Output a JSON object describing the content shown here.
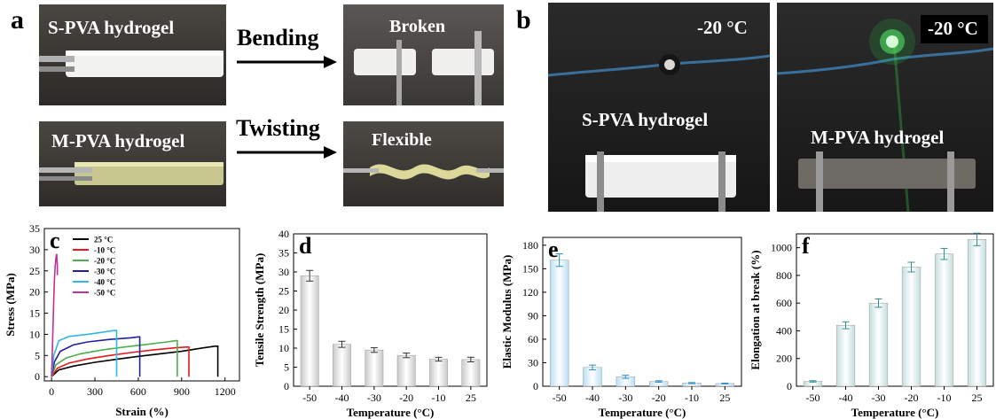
{
  "figure": {
    "panel_a": {
      "letter": "a",
      "s_pva_label": "S-PVA hydrogel",
      "bending_label": "Bending",
      "broken_label": "Broken",
      "m_pva_label": "M-PVA hydrogel",
      "twisting_label": "Twisting",
      "flexible_label": "Flexible"
    },
    "panel_b": {
      "letter": "b",
      "left_temp": "-20 °C",
      "right_temp": "-20 °C",
      "left_label": "S-PVA hydrogel",
      "right_label": "M-PVA hydrogel"
    }
  },
  "chart_data": [
    {
      "letter": "c",
      "type": "line",
      "xlabel": "Strain (%)",
      "ylabel": "Stress (MPa)",
      "xlim": [
        -50,
        1300
      ],
      "ylim": [
        -1,
        35
      ],
      "xticks": [
        "0",
        "300",
        "600",
        "900",
        "1200"
      ],
      "xtick_values": [
        0,
        300,
        600,
        900,
        1200
      ],
      "yticks": [
        "0",
        "5",
        "10",
        "15",
        "20",
        "25",
        "30",
        "35"
      ],
      "ytick_values": [
        0,
        5,
        10,
        15,
        20,
        25,
        30,
        35
      ],
      "legend_position": "top-left",
      "series": [
        {
          "name": "25 °C",
          "color": "#000000",
          "x": [
            0,
            50,
            150,
            300,
            450,
            600,
            750,
            900,
            1050,
            1130,
            1150,
            1150
          ],
          "y": [
            0,
            1.6,
            2.5,
            3.4,
            4.1,
            4.8,
            5.4,
            6.0,
            6.8,
            7.2,
            7.2,
            0
          ]
        },
        {
          "name": "-10 °C",
          "color": "#e41a1c",
          "x": [
            0,
            40,
            120,
            250,
            400,
            550,
            700,
            850,
            930,
            950,
            950
          ],
          "y": [
            0,
            2.0,
            3.2,
            4.2,
            5.0,
            5.7,
            6.3,
            6.8,
            7.0,
            7.0,
            0
          ]
        },
        {
          "name": "-20 °C",
          "color": "#4daf4a",
          "x": [
            0,
            30,
            100,
            200,
            350,
            500,
            650,
            800,
            860,
            870,
            870
          ],
          "y": [
            0,
            2.8,
            4.4,
            5.4,
            6.3,
            7.0,
            7.6,
            8.2,
            8.5,
            8.5,
            0
          ]
        },
        {
          "name": "-30 °C",
          "color": "#1f1fa0",
          "x": [
            0,
            20,
            60,
            150,
            250,
            400,
            550,
            600,
            610,
            610
          ],
          "y": [
            0,
            3.5,
            6.0,
            7.5,
            8.2,
            8.8,
            9.2,
            9.4,
            9.4,
            0
          ]
        },
        {
          "name": "-40 °C",
          "color": "#35b5e5",
          "x": [
            0,
            15,
            50,
            120,
            250,
            350,
            430,
            450,
            450
          ],
          "y": [
            0,
            5.0,
            8.5,
            9.5,
            10.0,
            10.5,
            10.9,
            10.9,
            0
          ]
        },
        {
          "name": "-50 °C",
          "color": "#c0309a",
          "x": [
            0,
            5,
            10,
            15,
            20,
            25,
            30,
            35,
            40,
            40
          ],
          "y": [
            0,
            6.0,
            12.0,
            18.0,
            23.0,
            26.0,
            28.0,
            29.0,
            26.0,
            24.0
          ]
        }
      ]
    },
    {
      "letter": "d",
      "type": "bar",
      "xlabel": "Temperature (°C)",
      "ylabel": "Tensile Strength (MPa)",
      "categories": [
        "-50",
        "-40",
        "-30",
        "-20",
        "-10",
        "25"
      ],
      "values": [
        29.0,
        11.0,
        9.5,
        8.1,
        7.1,
        7.0
      ],
      "errors": [
        1.4,
        0.8,
        0.6,
        0.6,
        0.5,
        0.6
      ],
      "ylim": [
        0,
        40
      ],
      "yticks": [
        "0",
        "5",
        "10",
        "15",
        "20",
        "25",
        "30",
        "35",
        "40"
      ],
      "ytick_values": [
        0,
        5,
        10,
        15,
        20,
        25,
        30,
        35,
        40
      ],
      "color": "#c9c9c9",
      "error_color": "#333333"
    },
    {
      "letter": "e",
      "type": "bar",
      "xlabel": "Temperature (°C)",
      "ylabel": "Elastic Modulus (MPa)",
      "categories": [
        "-50",
        "-40",
        "-30",
        "-20",
        "-10",
        "25"
      ],
      "values": [
        161,
        24,
        12,
        6,
        4,
        3.5
      ],
      "errors": [
        8,
        3,
        2,
        1,
        0.7,
        0.5
      ],
      "ylim": [
        0,
        190
      ],
      "yticks": [
        "0",
        "30",
        "60",
        "90",
        "120",
        "150",
        "180"
      ],
      "ytick_values": [
        0,
        30,
        60,
        90,
        120,
        150,
        180
      ],
      "color": "#b9dff5",
      "error_color": "#2a8fcf"
    },
    {
      "letter": "f",
      "type": "bar",
      "xlabel": "Temperature (°C)",
      "ylabel": "Elongation at break (%)",
      "categories": [
        "-50",
        "-40",
        "-30",
        "-20",
        "-10",
        "25"
      ],
      "values": [
        35,
        440,
        600,
        860,
        955,
        1060
      ],
      "errors": [
        5,
        25,
        30,
        35,
        40,
        45
      ],
      "ylim": [
        0,
        1100
      ],
      "yticks": [
        "0",
        "200",
        "400",
        "600",
        "800",
        "1000"
      ],
      "ytick_values": [
        0,
        200,
        400,
        600,
        800,
        1000
      ],
      "color": "#c3dedd",
      "error_color": "#2f8f90"
    }
  ]
}
